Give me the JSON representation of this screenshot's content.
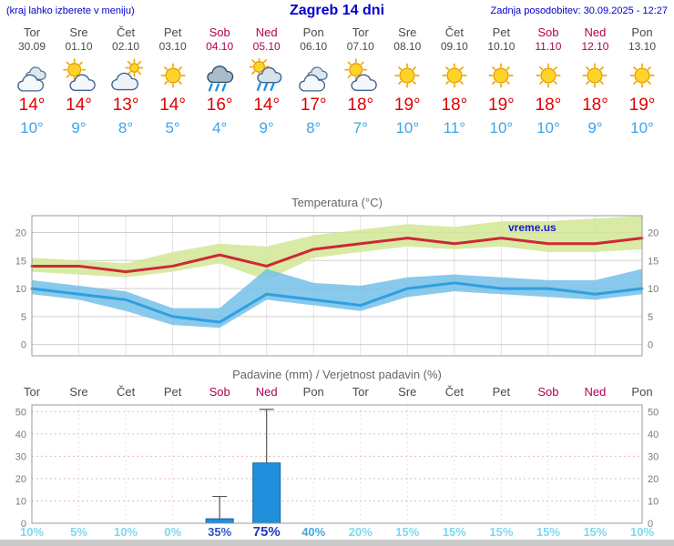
{
  "header": {
    "left_note": "(kraj lahko izberete v meniju)",
    "title": "Zagreb 14 dni",
    "updated": "Zadnja posodobitev: 30.09.2025 - 12:27"
  },
  "colors": {
    "weekend": "#b30050",
    "weekday": "#4a4a4a",
    "tmax": "#e00000",
    "tmin": "#3da5e8",
    "header_blue": "#0000cc"
  },
  "days": [
    {
      "name": "Tor",
      "date": "30.09",
      "weekend": false,
      "icon": "cloudy",
      "tmax": "14°",
      "tmin": "10°"
    },
    {
      "name": "Sre",
      "date": "01.10",
      "weekend": false,
      "icon": "partly-cloudy",
      "tmax": "14°",
      "tmin": "9°"
    },
    {
      "name": "Čet",
      "date": "02.10",
      "weekend": false,
      "icon": "mostly-cloudy",
      "tmax": "13°",
      "tmin": "8°"
    },
    {
      "name": "Pet",
      "date": "03.10",
      "weekend": false,
      "icon": "sunny",
      "tmax": "14°",
      "tmin": "5°"
    },
    {
      "name": "Sob",
      "date": "04.10",
      "weekend": true,
      "icon": "rain",
      "tmax": "16°",
      "tmin": "4°"
    },
    {
      "name": "Ned",
      "date": "05.10",
      "weekend": true,
      "icon": "sun-rain",
      "tmax": "14°",
      "tmin": "9°"
    },
    {
      "name": "Pon",
      "date": "06.10",
      "weekend": false,
      "icon": "cloudy",
      "tmax": "17°",
      "tmin": "8°"
    },
    {
      "name": "Tor",
      "date": "07.10",
      "weekend": false,
      "icon": "partly-cloudy",
      "tmax": "18°",
      "tmin": "7°"
    },
    {
      "name": "Sre",
      "date": "08.10",
      "weekend": false,
      "icon": "sunny",
      "tmax": "19°",
      "tmin": "10°"
    },
    {
      "name": "Čet",
      "date": "09.10",
      "weekend": false,
      "icon": "sunny",
      "tmax": "18°",
      "tmin": "11°"
    },
    {
      "name": "Pet",
      "date": "10.10",
      "weekend": false,
      "icon": "sunny",
      "tmax": "19°",
      "tmin": "10°"
    },
    {
      "name": "Sob",
      "date": "11.10",
      "weekend": true,
      "icon": "sunny",
      "tmax": "18°",
      "tmin": "10°"
    },
    {
      "name": "Ned",
      "date": "12.10",
      "weekend": true,
      "icon": "sunny",
      "tmax": "18°",
      "tmin": "9°"
    },
    {
      "name": "Pon",
      "date": "13.10",
      "weekend": false,
      "icon": "sunny",
      "tmax": "19°",
      "tmin": "10°"
    }
  ],
  "chart_data": [
    {
      "id": "temperature",
      "type": "line",
      "title": "Temperatura (°C)",
      "watermark": "vreme.us",
      "x_labels": [
        "Tor",
        "Sre",
        "Čet",
        "Pet",
        "Sob",
        "Ned",
        "Pon",
        "Tor",
        "Sre",
        "Čet",
        "Pet",
        "Sob",
        "Ned",
        "Pon"
      ],
      "ylim": [
        -2,
        23
      ],
      "yticks": [
        0,
        5,
        10,
        15,
        20
      ],
      "grid": true,
      "legend_position": "none",
      "series": [
        {
          "name": "max-temp",
          "color": "#cc2936",
          "values": [
            14,
            14,
            13,
            14,
            16,
            14,
            17,
            18,
            19,
            18,
            19,
            18,
            18,
            19
          ]
        },
        {
          "name": "min-temp",
          "color": "#2f9fe0",
          "values": [
            10,
            9,
            8,
            5,
            4,
            9,
            8,
            7,
            10,
            11,
            10,
            10,
            9,
            10
          ]
        }
      ],
      "bands": [
        {
          "name": "max-range",
          "color": "#d2e694",
          "upper": [
            15.5,
            15,
            14.5,
            16.5,
            18,
            17.5,
            19.5,
            20.5,
            21.5,
            21,
            22,
            22,
            22.5,
            23
          ],
          "lower": [
            13,
            12.5,
            12,
            13,
            14.5,
            11.5,
            15.5,
            16.5,
            17.5,
            17,
            17.5,
            16.5,
            16.5,
            17
          ]
        },
        {
          "name": "min-range",
          "color": "#74bfe8",
          "upper": [
            11.5,
            10.5,
            9.5,
            6.5,
            6.5,
            13.5,
            11,
            10.5,
            12,
            12.5,
            12,
            11.5,
            11.5,
            13.5
          ],
          "lower": [
            9,
            8,
            6,
            3.5,
            3,
            8,
            7,
            6,
            8.5,
            9.5,
            9,
            8.5,
            8,
            9
          ]
        }
      ]
    },
    {
      "id": "precipitation",
      "type": "bar",
      "title": "Padavine (mm) / Verjetnost padavin (%)",
      "x_labels": [
        "Tor",
        "Sre",
        "Čet",
        "Pet",
        "Sob",
        "Ned",
        "Pon",
        "Tor",
        "Sre",
        "Čet",
        "Pet",
        "Sob",
        "Ned",
        "Pon"
      ],
      "weekend_flags": [
        false,
        false,
        false,
        false,
        true,
        true,
        false,
        false,
        false,
        false,
        false,
        true,
        true,
        false
      ],
      "ylim": [
        0,
        53
      ],
      "yticks": [
        0,
        10,
        20,
        30,
        40,
        50
      ],
      "bars_mm": [
        0,
        0,
        0,
        0,
        2,
        27,
        0,
        0,
        0,
        0,
        0,
        0,
        0,
        0
      ],
      "range_max_mm": [
        0,
        0,
        0,
        0,
        12,
        51,
        0,
        0,
        0,
        0,
        0,
        0,
        0,
        0
      ],
      "bar_color": "#1f8fdc",
      "probabilities": [
        {
          "label": "10%",
          "tone": "light"
        },
        {
          "label": "5%",
          "tone": "light"
        },
        {
          "label": "10%",
          "tone": "light"
        },
        {
          "label": "0%",
          "tone": "light"
        },
        {
          "label": "35%",
          "tone": "strong"
        },
        {
          "label": "75%",
          "tone": "strongest"
        },
        {
          "label": "40%",
          "tone": "medium"
        },
        {
          "label": "20%",
          "tone": "light"
        },
        {
          "label": "15%",
          "tone": "light"
        },
        {
          "label": "15%",
          "tone": "light"
        },
        {
          "label": "15%",
          "tone": "light"
        },
        {
          "label": "15%",
          "tone": "light"
        },
        {
          "label": "15%",
          "tone": "light"
        },
        {
          "label": "10%",
          "tone": "light"
        }
      ]
    }
  ]
}
